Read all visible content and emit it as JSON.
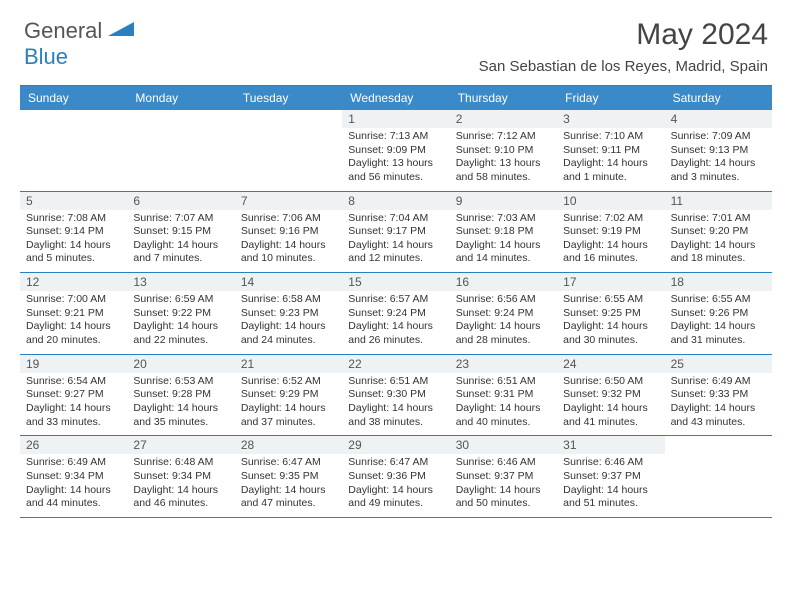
{
  "logo": {
    "general": "General",
    "blue": "Blue"
  },
  "title": "May 2024",
  "location": "San Sebastian de los Reyes, Madrid, Spain",
  "colors": {
    "header_bg": "#3a8ac9",
    "border": "#2a7fbf",
    "daynum_bg": "#eef2f5",
    "text": "#333333"
  },
  "day_headers": [
    "Sunday",
    "Monday",
    "Tuesday",
    "Wednesday",
    "Thursday",
    "Friday",
    "Saturday"
  ],
  "weeks": [
    [
      null,
      null,
      null,
      {
        "n": "1",
        "sr": "Sunrise: 7:13 AM",
        "ss": "Sunset: 9:09 PM",
        "dl": "Daylight: 13 hours and 56 minutes."
      },
      {
        "n": "2",
        "sr": "Sunrise: 7:12 AM",
        "ss": "Sunset: 9:10 PM",
        "dl": "Daylight: 13 hours and 58 minutes."
      },
      {
        "n": "3",
        "sr": "Sunrise: 7:10 AM",
        "ss": "Sunset: 9:11 PM",
        "dl": "Daylight: 14 hours and 1 minute."
      },
      {
        "n": "4",
        "sr": "Sunrise: 7:09 AM",
        "ss": "Sunset: 9:13 PM",
        "dl": "Daylight: 14 hours and 3 minutes."
      }
    ],
    [
      {
        "n": "5",
        "sr": "Sunrise: 7:08 AM",
        "ss": "Sunset: 9:14 PM",
        "dl": "Daylight: 14 hours and 5 minutes."
      },
      {
        "n": "6",
        "sr": "Sunrise: 7:07 AM",
        "ss": "Sunset: 9:15 PM",
        "dl": "Daylight: 14 hours and 7 minutes."
      },
      {
        "n": "7",
        "sr": "Sunrise: 7:06 AM",
        "ss": "Sunset: 9:16 PM",
        "dl": "Daylight: 14 hours and 10 minutes."
      },
      {
        "n": "8",
        "sr": "Sunrise: 7:04 AM",
        "ss": "Sunset: 9:17 PM",
        "dl": "Daylight: 14 hours and 12 minutes."
      },
      {
        "n": "9",
        "sr": "Sunrise: 7:03 AM",
        "ss": "Sunset: 9:18 PM",
        "dl": "Daylight: 14 hours and 14 minutes."
      },
      {
        "n": "10",
        "sr": "Sunrise: 7:02 AM",
        "ss": "Sunset: 9:19 PM",
        "dl": "Daylight: 14 hours and 16 minutes."
      },
      {
        "n": "11",
        "sr": "Sunrise: 7:01 AM",
        "ss": "Sunset: 9:20 PM",
        "dl": "Daylight: 14 hours and 18 minutes."
      }
    ],
    [
      {
        "n": "12",
        "sr": "Sunrise: 7:00 AM",
        "ss": "Sunset: 9:21 PM",
        "dl": "Daylight: 14 hours and 20 minutes."
      },
      {
        "n": "13",
        "sr": "Sunrise: 6:59 AM",
        "ss": "Sunset: 9:22 PM",
        "dl": "Daylight: 14 hours and 22 minutes."
      },
      {
        "n": "14",
        "sr": "Sunrise: 6:58 AM",
        "ss": "Sunset: 9:23 PM",
        "dl": "Daylight: 14 hours and 24 minutes."
      },
      {
        "n": "15",
        "sr": "Sunrise: 6:57 AM",
        "ss": "Sunset: 9:24 PM",
        "dl": "Daylight: 14 hours and 26 minutes."
      },
      {
        "n": "16",
        "sr": "Sunrise: 6:56 AM",
        "ss": "Sunset: 9:24 PM",
        "dl": "Daylight: 14 hours and 28 minutes."
      },
      {
        "n": "17",
        "sr": "Sunrise: 6:55 AM",
        "ss": "Sunset: 9:25 PM",
        "dl": "Daylight: 14 hours and 30 minutes."
      },
      {
        "n": "18",
        "sr": "Sunrise: 6:55 AM",
        "ss": "Sunset: 9:26 PM",
        "dl": "Daylight: 14 hours and 31 minutes."
      }
    ],
    [
      {
        "n": "19",
        "sr": "Sunrise: 6:54 AM",
        "ss": "Sunset: 9:27 PM",
        "dl": "Daylight: 14 hours and 33 minutes."
      },
      {
        "n": "20",
        "sr": "Sunrise: 6:53 AM",
        "ss": "Sunset: 9:28 PM",
        "dl": "Daylight: 14 hours and 35 minutes."
      },
      {
        "n": "21",
        "sr": "Sunrise: 6:52 AM",
        "ss": "Sunset: 9:29 PM",
        "dl": "Daylight: 14 hours and 37 minutes."
      },
      {
        "n": "22",
        "sr": "Sunrise: 6:51 AM",
        "ss": "Sunset: 9:30 PM",
        "dl": "Daylight: 14 hours and 38 minutes."
      },
      {
        "n": "23",
        "sr": "Sunrise: 6:51 AM",
        "ss": "Sunset: 9:31 PM",
        "dl": "Daylight: 14 hours and 40 minutes."
      },
      {
        "n": "24",
        "sr": "Sunrise: 6:50 AM",
        "ss": "Sunset: 9:32 PM",
        "dl": "Daylight: 14 hours and 41 minutes."
      },
      {
        "n": "25",
        "sr": "Sunrise: 6:49 AM",
        "ss": "Sunset: 9:33 PM",
        "dl": "Daylight: 14 hours and 43 minutes."
      }
    ],
    [
      {
        "n": "26",
        "sr": "Sunrise: 6:49 AM",
        "ss": "Sunset: 9:34 PM",
        "dl": "Daylight: 14 hours and 44 minutes."
      },
      {
        "n": "27",
        "sr": "Sunrise: 6:48 AM",
        "ss": "Sunset: 9:34 PM",
        "dl": "Daylight: 14 hours and 46 minutes."
      },
      {
        "n": "28",
        "sr": "Sunrise: 6:47 AM",
        "ss": "Sunset: 9:35 PM",
        "dl": "Daylight: 14 hours and 47 minutes."
      },
      {
        "n": "29",
        "sr": "Sunrise: 6:47 AM",
        "ss": "Sunset: 9:36 PM",
        "dl": "Daylight: 14 hours and 49 minutes."
      },
      {
        "n": "30",
        "sr": "Sunrise: 6:46 AM",
        "ss": "Sunset: 9:37 PM",
        "dl": "Daylight: 14 hours and 50 minutes."
      },
      {
        "n": "31",
        "sr": "Sunrise: 6:46 AM",
        "ss": "Sunset: 9:37 PM",
        "dl": "Daylight: 14 hours and 51 minutes."
      },
      null
    ]
  ]
}
